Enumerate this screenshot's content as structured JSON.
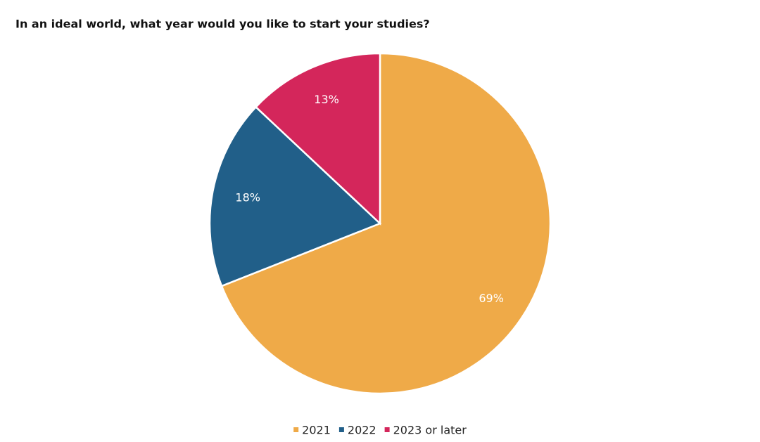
{
  "chart_data": {
    "type": "pie",
    "title": "In an ideal world, what year would you like to start your studies?",
    "categories": [
      "2021",
      "2022",
      "2023 or later"
    ],
    "values": [
      69,
      18,
      13
    ],
    "value_labels": [
      "69%",
      "18%",
      "13%"
    ],
    "colors": [
      "#efaa48",
      "#215f89",
      "#d4265b"
    ],
    "legend": "bottom"
  }
}
